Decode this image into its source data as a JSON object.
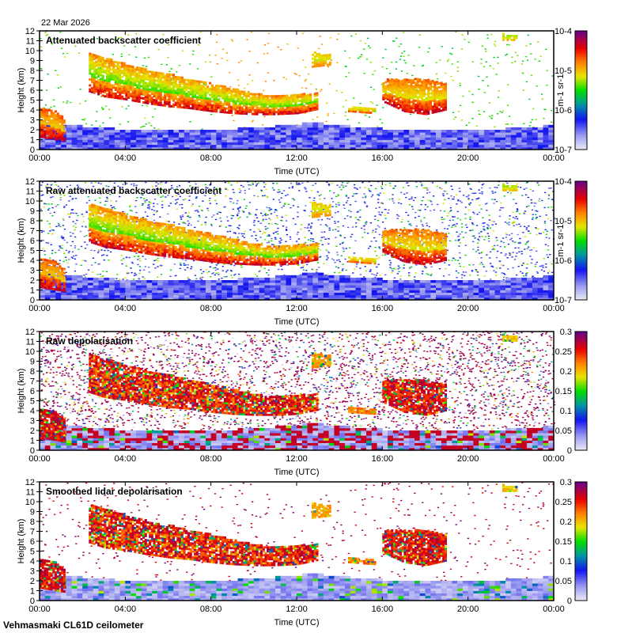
{
  "header": {
    "date": "22 Mar 2026"
  },
  "footer": {
    "site": "Vehmasmaki CL61D ceilometer"
  },
  "chart_data": [
    {
      "type": "heatmap",
      "title": "Attenuated backscatter coefficient",
      "xlabel": "Time (UTC)",
      "ylabel": "Height (km)",
      "xlim": [
        0,
        24
      ],
      "ylim": [
        0,
        12
      ],
      "xticks": [
        "00:00",
        "04:00",
        "08:00",
        "12:00",
        "16:00",
        "20:00",
        "00:00"
      ],
      "yticks": [
        "0",
        "1",
        "2",
        "3",
        "4",
        "5",
        "6",
        "7",
        "8",
        "9",
        "10",
        "11",
        "12"
      ],
      "colorbar": {
        "label": "m-1 sr-1",
        "scale": "log",
        "ticks": [
          "10-7",
          "10-6",
          "10-5",
          "10-4"
        ]
      },
      "noise": "sparse",
      "background": "#ffffff"
    },
    {
      "type": "heatmap",
      "title": "Raw attenuated backscatter coefficient",
      "xlabel": "Time (UTC)",
      "ylabel": "Height (km)",
      "xlim": [
        0,
        24
      ],
      "ylim": [
        0,
        12
      ],
      "xticks": [
        "00:00",
        "04:00",
        "08:00",
        "12:00",
        "16:00",
        "20:00",
        "00:00"
      ],
      "yticks": [
        "0",
        "1",
        "2",
        "3",
        "4",
        "5",
        "6",
        "7",
        "8",
        "9",
        "10",
        "11",
        "12"
      ],
      "colorbar": {
        "label": "m-1 sr-1",
        "scale": "log",
        "ticks": [
          "10-7",
          "10-6",
          "10-5",
          "10-4"
        ]
      },
      "noise": "blue",
      "background": "#ffffff"
    },
    {
      "type": "heatmap",
      "title": "Raw depolarisation",
      "xlabel": "Time (UTC)",
      "ylabel": "Height (km)",
      "xlim": [
        0,
        24
      ],
      "ylim": [
        0,
        12
      ],
      "xticks": [
        "00:00",
        "04:00",
        "08:00",
        "12:00",
        "16:00",
        "20:00",
        "00:00"
      ],
      "yticks": [
        "0",
        "1",
        "2",
        "3",
        "4",
        "5",
        "6",
        "7",
        "8",
        "9",
        "10",
        "11",
        "12"
      ],
      "colorbar": {
        "label": "",
        "scale": "linear",
        "ticks": [
          "0",
          "0.05",
          "0.1",
          "0.15",
          "0.2",
          "0.25",
          "0.3"
        ]
      },
      "noise": "dense",
      "background": "#ffffff"
    },
    {
      "type": "heatmap",
      "title": "Smoothed lidar depolarisation",
      "xlabel": "Time (UTC)",
      "ylabel": "Height (km)",
      "xlim": [
        0,
        24
      ],
      "ylim": [
        0,
        12
      ],
      "xticks": [
        "00:00",
        "04:00",
        "08:00",
        "12:00",
        "16:00",
        "20:00",
        "00:00"
      ],
      "yticks": [
        "0",
        "1",
        "2",
        "3",
        "4",
        "5",
        "6",
        "7",
        "8",
        "9",
        "10",
        "11",
        "12"
      ],
      "colorbar": {
        "label": "",
        "scale": "linear",
        "ticks": [
          "0",
          "0.05",
          "0.1",
          "0.15",
          "0.2",
          "0.25",
          "0.3"
        ]
      },
      "noise": "sparse",
      "background": "#ffffff"
    }
  ],
  "features": [
    {
      "name": "low-cloud",
      "t": [
        0,
        1.2
      ],
      "profile": [
        [
          0.1,
          1.2,
          4.2
        ],
        [
          0.6,
          1.0,
          4.0
        ],
        [
          1.2,
          0.8,
          3.0
        ]
      ],
      "level": [
        0.55,
        0.95
      ]
    },
    {
      "name": "main-cloud",
      "t": [
        2.3,
        12.9
      ],
      "profile": [
        [
          2.3,
          5.8,
          9.7
        ],
        [
          3,
          5.3,
          9.2
        ],
        [
          4,
          5.0,
          8.6
        ],
        [
          5,
          4.6,
          8.0
        ],
        [
          6,
          4.3,
          7.6
        ],
        [
          7,
          4.1,
          7.0
        ],
        [
          8,
          3.8,
          6.6
        ],
        [
          9,
          3.6,
          6.1
        ],
        [
          10,
          3.5,
          5.6
        ],
        [
          11,
          3.5,
          5.3
        ],
        [
          12,
          3.6,
          5.5
        ],
        [
          12.9,
          4.0,
          5.6
        ]
      ],
      "level": [
        0.4,
        0.95
      ]
    },
    {
      "name": "small-cloud",
      "t": [
        14.4,
        15.6
      ],
      "profile": [
        [
          14.4,
          3.8,
          4.4
        ],
        [
          15.6,
          3.6,
          4.1
        ]
      ],
      "level": [
        0.5,
        0.8
      ]
    },
    {
      "name": "afternoon-cloud",
      "t": [
        16,
        19
      ],
      "profile": [
        [
          16,
          4.8,
          7.0
        ],
        [
          17,
          3.8,
          7.1
        ],
        [
          18,
          3.5,
          7.0
        ],
        [
          19,
          4.0,
          6.6
        ]
      ],
      "level": [
        0.5,
        0.95
      ]
    },
    {
      "name": "ash-patch",
      "t": [
        12.7,
        13.5
      ],
      "profile": [
        [
          12.7,
          8.3,
          9.8
        ],
        [
          13.5,
          8.5,
          9.5
        ]
      ],
      "level": [
        0.55,
        0.75
      ]
    },
    {
      "name": "upper-patch",
      "t": [
        21.6,
        22.3
      ],
      "profile": [
        [
          21.6,
          11.0,
          11.6
        ],
        [
          22.3,
          11.0,
          11.5
        ]
      ],
      "level": [
        0.5,
        0.7
      ]
    }
  ]
}
